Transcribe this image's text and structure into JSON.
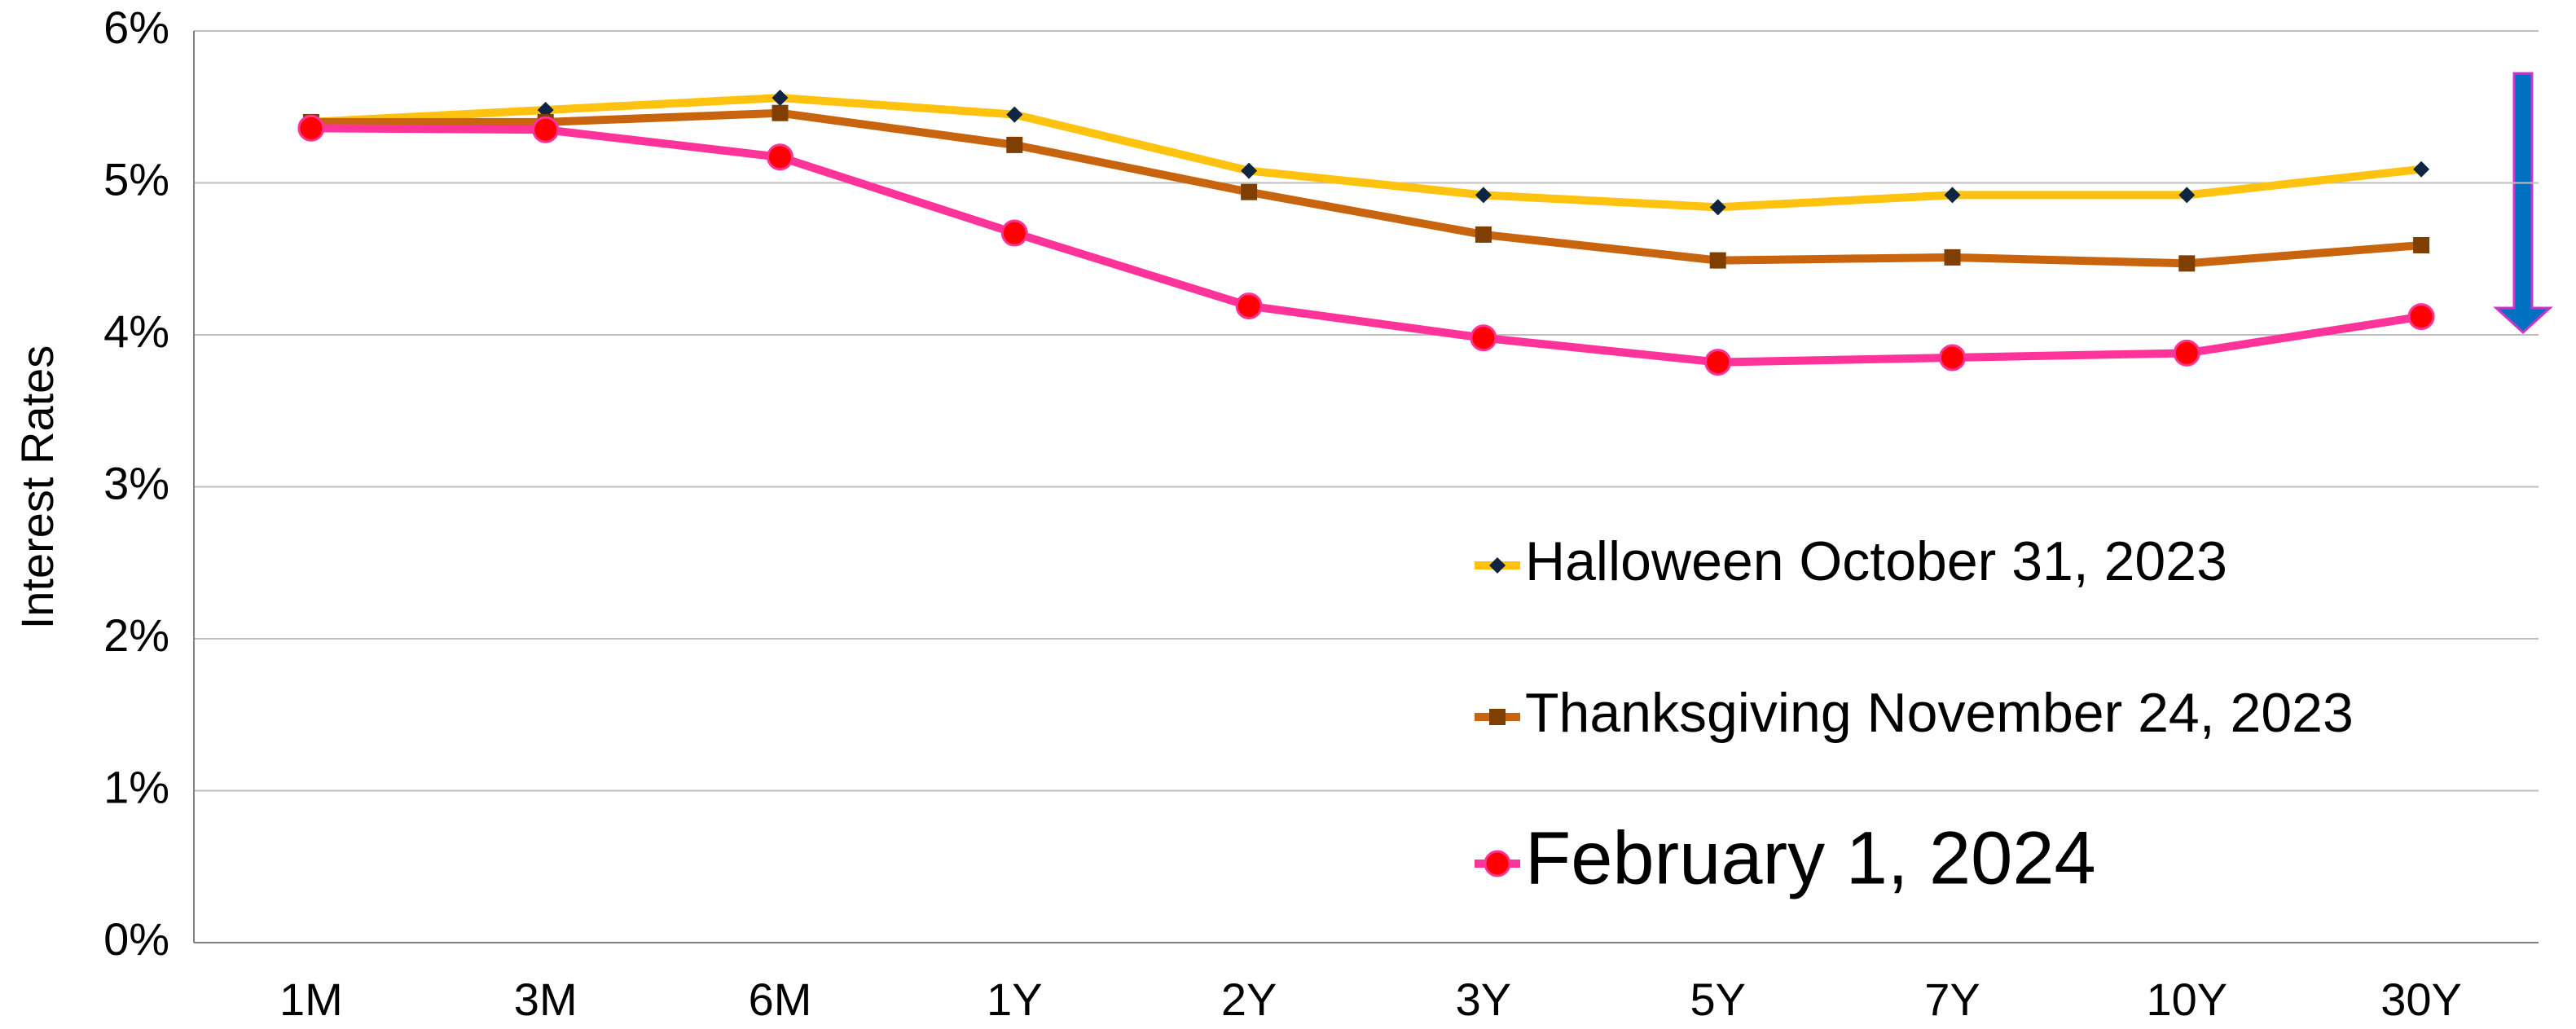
{
  "chart_data": {
    "type": "line",
    "y_label": "Interest Rates",
    "categories": [
      "1M",
      "3M",
      "6M",
      "1Y",
      "2Y",
      "3Y",
      "5Y",
      "7Y",
      "10Y",
      "30Y"
    ],
    "series": [
      {
        "name": "Halloween October 31, 2023",
        "color": "#FFC20E",
        "marker": "diamond",
        "marker_color": "#10253F",
        "values": [
          5.4,
          5.48,
          5.56,
          5.45,
          5.08,
          4.92,
          4.84,
          4.92,
          4.92,
          5.09
        ]
      },
      {
        "name": "Thanksgiving November 24, 2023",
        "color": "#C8640E",
        "marker": "square",
        "marker_color": "#7F3F00",
        "values": [
          5.4,
          5.4,
          5.46,
          5.25,
          4.94,
          4.66,
          4.49,
          4.51,
          4.47,
          4.59
        ]
      },
      {
        "name": "February 1, 2024",
        "color": "#FF3399",
        "marker": "circle",
        "marker_color": "#FF0000",
        "values": [
          5.36,
          5.35,
          5.17,
          4.67,
          4.19,
          3.98,
          3.82,
          3.85,
          3.88,
          4.12
        ]
      }
    ],
    "ylim": [
      0,
      6
    ],
    "yticks": [
      {
        "value": 0,
        "label": "0%"
      },
      {
        "value": 1,
        "label": "1%"
      },
      {
        "value": 2,
        "label": "2%"
      },
      {
        "value": 3,
        "label": "3%"
      },
      {
        "value": 4,
        "label": "4%"
      },
      {
        "value": 5,
        "label": "5%"
      },
      {
        "value": 6,
        "label": "6%"
      }
    ],
    "grid": true
  }
}
